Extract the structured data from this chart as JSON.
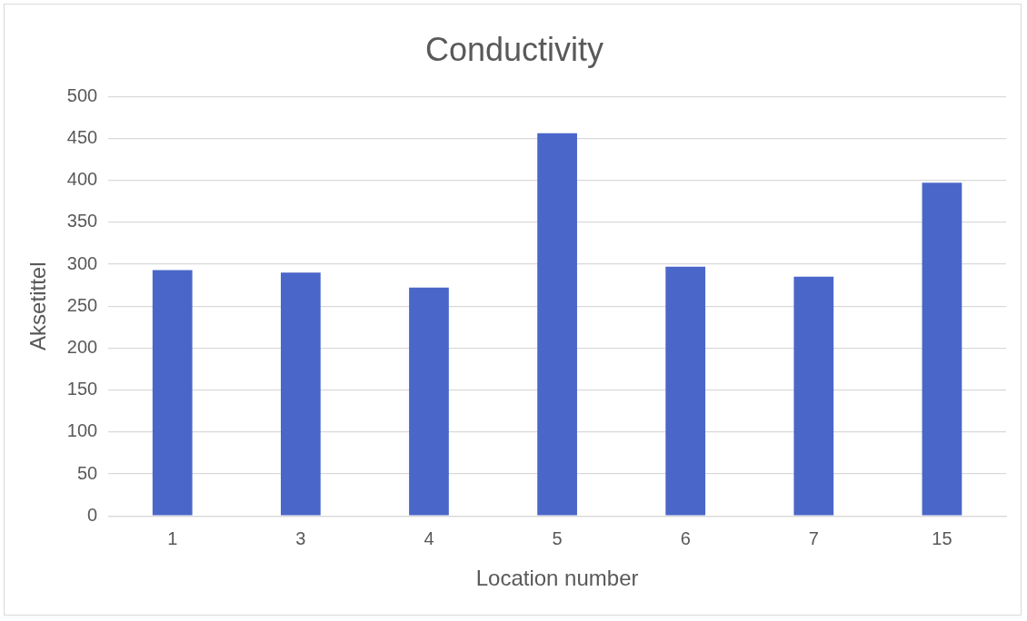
{
  "chart_data": {
    "type": "bar",
    "title": "Conductivity",
    "xlabel": "Location number",
    "ylabel": "Aksetittel",
    "categories": [
      "1",
      "3",
      "4",
      "5",
      "6",
      "7",
      "15"
    ],
    "values": [
      293,
      290,
      272,
      456,
      297,
      285,
      397
    ],
    "color": "#4a66c9",
    "ylim": [
      0,
      500
    ],
    "yticks": [
      0,
      50,
      100,
      150,
      200,
      250,
      300,
      350,
      400,
      450,
      500
    ],
    "grid": "y",
    "legend": false
  }
}
